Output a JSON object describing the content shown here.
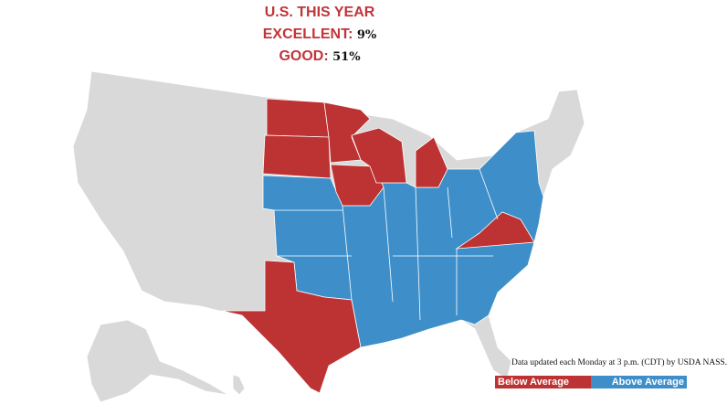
{
  "header": {
    "title": "U.S. THIS YEAR",
    "excellent_label": "EXCELLENT:",
    "excellent_value": "9%",
    "good_label": "GOOD:",
    "good_value": "51%"
  },
  "colors": {
    "below": "#bd3232",
    "above": "#3e8fc9",
    "no_data": "#d9d9d9"
  },
  "states": {
    "below_average": [
      "North Dakota",
      "South Dakota",
      "Minnesota",
      "Iowa",
      "Wisconsin",
      "Michigan",
      "Virginia",
      "Texas"
    ],
    "above_average": [
      "Nebraska",
      "Kansas",
      "Oklahoma",
      "Missouri",
      "Arkansas",
      "Louisiana",
      "Illinois",
      "Indiana",
      "Ohio",
      "Kentucky",
      "Tennessee",
      "Mississippi",
      "Alabama",
      "Georgia",
      "South Carolina",
      "North Carolina",
      "West Virginia",
      "Pennsylvania",
      "New York",
      "New Jersey",
      "Delaware",
      "Maryland"
    ]
  },
  "note": "Data updated each Monday at 3 p.m. (CDT) by USDA NASS.",
  "legend": {
    "below": "Below Average",
    "above": "Above Average"
  }
}
